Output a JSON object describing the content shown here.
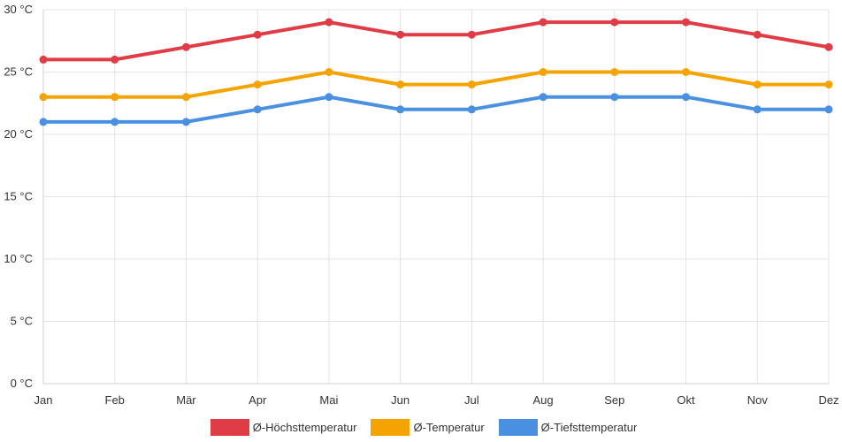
{
  "chart_data": {
    "type": "line",
    "title": "",
    "xlabel": "",
    "ylabel": "",
    "categories": [
      "Jan",
      "Feb",
      "Mär",
      "Apr",
      "Mai",
      "Jun",
      "Jul",
      "Aug",
      "Sep",
      "Okt",
      "Nov",
      "Dez"
    ],
    "ylim": [
      0,
      30
    ],
    "yticks": [
      0,
      5,
      10,
      15,
      20,
      25,
      30
    ],
    "ytick_labels": [
      "0 °C",
      "5 °C",
      "10 °C",
      "15 °C",
      "20 °C",
      "25 °C",
      "30 °C"
    ],
    "grid": true,
    "legend_position": "bottom-center",
    "series": [
      {
        "name": "Ø-Höchsttemperatur",
        "color": "#e03c46",
        "values": [
          26,
          26,
          27,
          28,
          29,
          28,
          28,
          29,
          29,
          29,
          28,
          27
        ]
      },
      {
        "name": "Ø-Temperatur",
        "color": "#f5a300",
        "values": [
          23,
          23,
          23,
          24,
          25,
          24,
          24,
          25,
          25,
          25,
          24,
          24
        ]
      },
      {
        "name": "Ø-Tiefsttemperatur",
        "color": "#4a90e2",
        "values": [
          21,
          21,
          21,
          22,
          23,
          22,
          22,
          23,
          23,
          23,
          22,
          22
        ]
      }
    ]
  }
}
